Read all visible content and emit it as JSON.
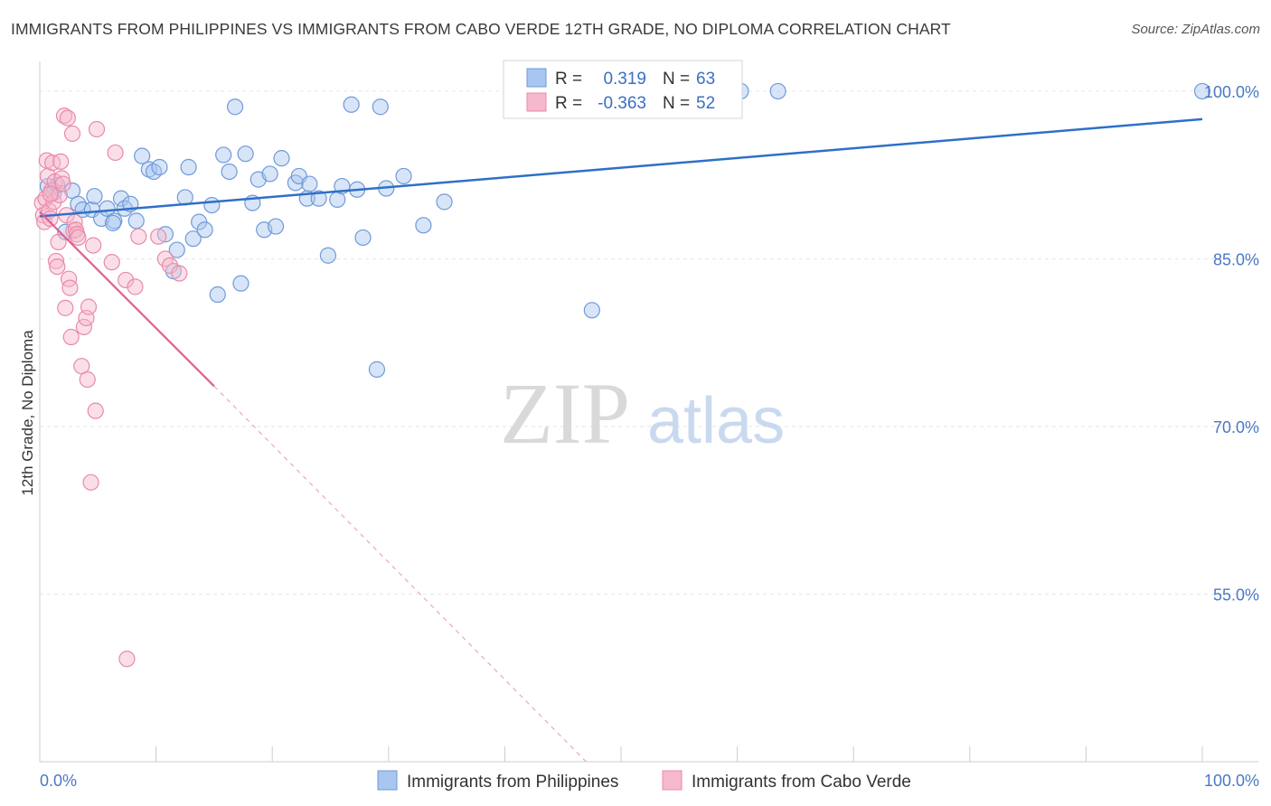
{
  "title": "IMMIGRANTS FROM PHILIPPINES VS IMMIGRANTS FROM CABO VERDE 12TH GRADE, NO DIPLOMA CORRELATION CHART",
  "source": "Source: ZipAtlas.com",
  "watermark": {
    "zip": "ZIP",
    "atlas": "atlas"
  },
  "colors": {
    "blue_fill": "#a8c6f0",
    "blue_stroke": "#6f9ad8",
    "blue_line": "#2f6fc8",
    "pink_fill": "#f6b8cc",
    "pink_stroke": "#e98aa8",
    "pink_line": "#e0608e",
    "grid": "#e6e6e6",
    "axis_text": "#4a78c4"
  },
  "legend": {
    "r_label": "R =",
    "n_label": "N =",
    "series": [
      {
        "r": "0.319",
        "n": "63"
      },
      {
        "r": "-0.363",
        "n": "52"
      }
    ]
  },
  "chart_data": {
    "type": "scatter",
    "xlabel": "",
    "ylabel": "12th Grade, No Diploma",
    "xlim": [
      0,
      100
    ],
    "ylim": [
      40,
      102.5
    ],
    "x_tick_labels": [
      "0.0%",
      "100.0%"
    ],
    "y_ticks": [
      55,
      70,
      85,
      100
    ],
    "y_tick_labels": [
      "55.0%",
      "70.0%",
      "85.0%",
      "100.0%"
    ],
    "grid": true,
    "series": [
      {
        "name": "Immigrants from Philippines",
        "color": "#a8c6f0",
        "trend": {
          "x": [
            0,
            100
          ],
          "y": [
            88.8,
            97.5
          ],
          "dashed_from": null
        },
        "points": [
          [
            0.7,
            91.5
          ],
          [
            1.2,
            90.9
          ],
          [
            1.5,
            91.6
          ],
          [
            2.2,
            87.4
          ],
          [
            2.8,
            91.1
          ],
          [
            3.3,
            89.9
          ],
          [
            3.7,
            89.4
          ],
          [
            4.5,
            89.4
          ],
          [
            4.7,
            90.6
          ],
          [
            5.3,
            88.6
          ],
          [
            5.8,
            89.5
          ],
          [
            6.4,
            88.4
          ],
          [
            6.3,
            88.2
          ],
          [
            7.0,
            90.4
          ],
          [
            7.3,
            89.5
          ],
          [
            7.8,
            89.9
          ],
          [
            8.3,
            88.4
          ],
          [
            8.8,
            94.2
          ],
          [
            9.4,
            93.0
          ],
          [
            9.8,
            92.8
          ],
          [
            10.3,
            93.2
          ],
          [
            10.8,
            87.2
          ],
          [
            11.5,
            83.9
          ],
          [
            11.8,
            85.8
          ],
          [
            12.5,
            90.5
          ],
          [
            12.8,
            93.2
          ],
          [
            13.2,
            86.8
          ],
          [
            13.7,
            88.3
          ],
          [
            14.2,
            87.6
          ],
          [
            14.8,
            89.8
          ],
          [
            15.3,
            81.8
          ],
          [
            15.8,
            94.3
          ],
          [
            16.3,
            92.8
          ],
          [
            16.8,
            98.6
          ],
          [
            17.3,
            82.8
          ],
          [
            17.7,
            94.4
          ],
          [
            18.3,
            90.0
          ],
          [
            18.8,
            92.1
          ],
          [
            19.3,
            87.6
          ],
          [
            19.8,
            92.6
          ],
          [
            20.3,
            87.9
          ],
          [
            20.8,
            94.0
          ],
          [
            22.0,
            91.8
          ],
          [
            22.3,
            92.4
          ],
          [
            23.0,
            90.4
          ],
          [
            23.2,
            91.7
          ],
          [
            24.0,
            90.4
          ],
          [
            24.8,
            85.3
          ],
          [
            25.6,
            90.3
          ],
          [
            26.0,
            91.5
          ],
          [
            26.8,
            98.8
          ],
          [
            27.3,
            91.2
          ],
          [
            27.8,
            86.9
          ],
          [
            29.0,
            75.1
          ],
          [
            29.3,
            98.6
          ],
          [
            29.8,
            91.3
          ],
          [
            31.3,
            92.4
          ],
          [
            33.0,
            88.0
          ],
          [
            34.8,
            90.1
          ],
          [
            47.5,
            80.4
          ],
          [
            60.3,
            100.0
          ],
          [
            63.5,
            100.0
          ],
          [
            100.0,
            100.0
          ]
        ]
      },
      {
        "name": "Immigrants from Cabo Verde",
        "color": "#f6b8cc",
        "trend": {
          "x": [
            0,
            15
          ],
          "y": [
            89.2,
            73.6
          ],
          "dashed_to": [
            47,
            40
          ]
        },
        "points": [
          [
            0.2,
            90.0
          ],
          [
            0.3,
            88.9
          ],
          [
            0.4,
            88.3
          ],
          [
            0.5,
            90.4
          ],
          [
            0.6,
            93.8
          ],
          [
            0.7,
            92.4
          ],
          [
            0.8,
            89.3
          ],
          [
            0.9,
            88.6
          ],
          [
            1.0,
            91.1
          ],
          [
            1.1,
            93.6
          ],
          [
            1.2,
            90.1
          ],
          [
            1.3,
            91.9
          ],
          [
            1.4,
            84.8
          ],
          [
            1.5,
            84.3
          ],
          [
            1.6,
            86.5
          ],
          [
            1.7,
            90.7
          ],
          [
            1.8,
            93.7
          ],
          [
            1.9,
            92.2
          ],
          [
            2.0,
            91.7
          ],
          [
            2.1,
            97.8
          ],
          [
            2.2,
            80.6
          ],
          [
            2.3,
            88.9
          ],
          [
            2.4,
            97.6
          ],
          [
            2.5,
            83.2
          ],
          [
            2.6,
            82.4
          ],
          [
            2.7,
            78.0
          ],
          [
            2.8,
            96.2
          ],
          [
            2.9,
            87.5
          ],
          [
            3.0,
            88.3
          ],
          [
            3.1,
            87.6
          ],
          [
            3.2,
            87.2
          ],
          [
            3.3,
            86.9
          ],
          [
            3.6,
            75.4
          ],
          [
            3.8,
            78.9
          ],
          [
            4.0,
            79.7
          ],
          [
            4.1,
            74.2
          ],
          [
            4.2,
            80.7
          ],
          [
            4.4,
            65.0
          ],
          [
            4.6,
            86.2
          ],
          [
            4.8,
            71.4
          ],
          [
            4.9,
            96.6
          ],
          [
            6.2,
            84.7
          ],
          [
            6.5,
            94.5
          ],
          [
            7.4,
            83.1
          ],
          [
            7.5,
            49.2
          ],
          [
            8.2,
            82.5
          ],
          [
            8.5,
            87.0
          ],
          [
            10.2,
            87.0
          ],
          [
            10.8,
            85.0
          ],
          [
            11.2,
            84.4
          ],
          [
            12.0,
            83.7
          ],
          [
            0.9,
            90.8
          ]
        ]
      }
    ]
  }
}
